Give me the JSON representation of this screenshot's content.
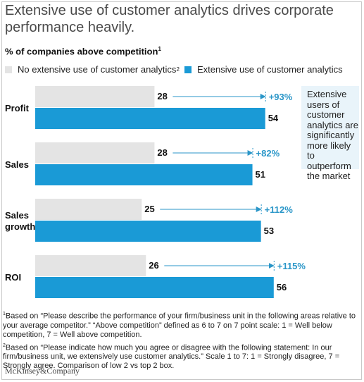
{
  "title": "Extensive use of customer analytics drives corporate performance heavily.",
  "subtitle": "% of companies above competition",
  "subtitle_sup": "1",
  "colors": {
    "no_extensive": "#e4e4e4",
    "extensive": "#1a9ad6",
    "arrow": "#2a96c8",
    "pct_text": "#2a96c8",
    "callout_bg": "#e9f4fa"
  },
  "callout": "Extensive users of customer analytics are significantly more likely to outperform the market",
  "notes": [
    {
      "mark": "1",
      "text": "Based on “Please describe the performance of your firm/business unit in the following areas relative to your average competitor.” “Above competition” defined as 6 to 7 on 7 point scale: 1 = Well below competition, 7 = Well above competition."
    },
    {
      "mark": "2",
      "text": "Based on “Please indicate how much you agree or disagree with the following statement: In our firm/business unit, we extensively use customer analytics.” Scale 1 to 7: 1 = Strongly disagree, 7 = Strongly agree. Comparison of low 2 vs top 2 box."
    }
  ],
  "brand": "McKinsey&Company",
  "chart_data": {
    "type": "bar",
    "orientation": "horizontal",
    "categories": [
      "Profit",
      "Sales",
      "Sales growth",
      "ROI"
    ],
    "category_lines": [
      [
        "Profit"
      ],
      [
        "Sales"
      ],
      [
        "Sales",
        "growth"
      ],
      [
        "ROI"
      ]
    ],
    "series": [
      {
        "name": "No extensive use of customer analytics",
        "name_sup": "2",
        "values": [
          28,
          28,
          25,
          26
        ]
      },
      {
        "name": "Extensive use of customer analytics",
        "values": [
          54,
          51,
          53,
          56
        ]
      }
    ],
    "uplift_labels": [
      "+93%",
      "+82%",
      "+112%",
      "+115%"
    ],
    "xlim": [
      0,
      56
    ],
    "legend_position": "top"
  }
}
